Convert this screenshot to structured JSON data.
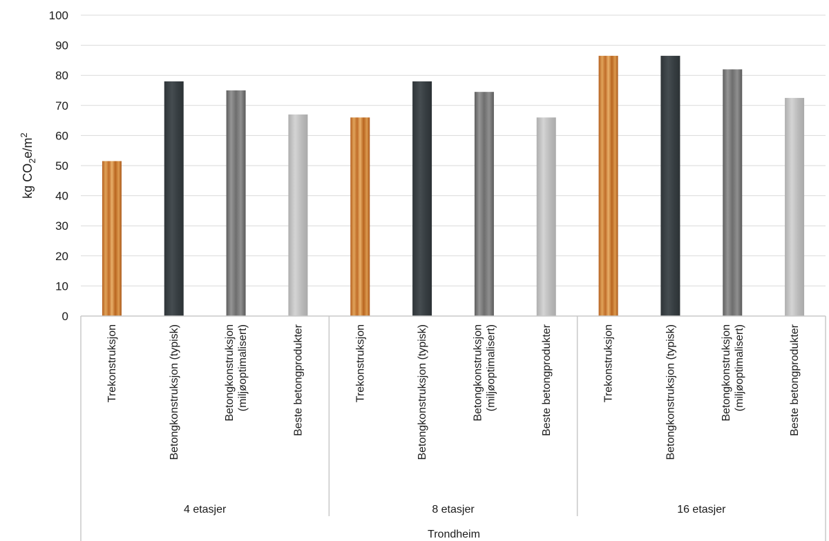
{
  "chart_data": {
    "type": "bar",
    "title": "",
    "ylabel": "kg CO2e/m2",
    "ylabel_parts": {
      "main": "kg CO",
      "sub": "2",
      "mid": "e/m",
      "sup": "2"
    },
    "ylim": [
      0,
      100
    ],
    "yticks": [
      "0",
      "10",
      "20",
      "30",
      "40",
      "50",
      "60",
      "70",
      "80",
      "90",
      "100"
    ],
    "grid": true,
    "outer_group": "Trondheim",
    "groups": [
      {
        "name": "4 etasjer",
        "bars": [
          {
            "label": [
              "Trekonstruksjon"
            ],
            "value": 51.5,
            "material": "wood"
          },
          {
            "label": [
              "Betongkonstruksjon (typisk)"
            ],
            "value": 78,
            "material": "dark"
          },
          {
            "label": [
              "Betongkonstruksjon",
              "(miljøoptimalisert)"
            ],
            "value": 75,
            "material": "grey"
          },
          {
            "label": [
              "Beste betongprodukter"
            ],
            "value": 67,
            "material": "light"
          }
        ]
      },
      {
        "name": "8 etasjer",
        "bars": [
          {
            "label": [
              "Trekonstruksjon"
            ],
            "value": 66,
            "material": "wood"
          },
          {
            "label": [
              "Betongkonstruksjon (typisk)"
            ],
            "value": 78,
            "material": "dark"
          },
          {
            "label": [
              "Betongkonstruksjon",
              "(miljøoptimalisert)"
            ],
            "value": 74.5,
            "material": "grey"
          },
          {
            "label": [
              "Beste betongprodukter"
            ],
            "value": 66,
            "material": "light"
          }
        ]
      },
      {
        "name": "16 etasjer",
        "bars": [
          {
            "label": [
              "Trekonstruksjon"
            ],
            "value": 86.5,
            "material": "wood"
          },
          {
            "label": [
              "Betongkonstruksjon (typisk)"
            ],
            "value": 86.5,
            "material": "dark"
          },
          {
            "label": [
              "Betongkonstruksjon",
              "(miljøoptimalisert)"
            ],
            "value": 82,
            "material": "grey"
          },
          {
            "label": [
              "Beste betongprodukter"
            ],
            "value": 72.5,
            "material": "light"
          }
        ]
      }
    ]
  },
  "colors": {
    "wood": "#c9782f",
    "dark": "#3b4246",
    "grey": "#7d7d7d",
    "light": "#c2c2c2",
    "grid": "#d9d9d9"
  }
}
